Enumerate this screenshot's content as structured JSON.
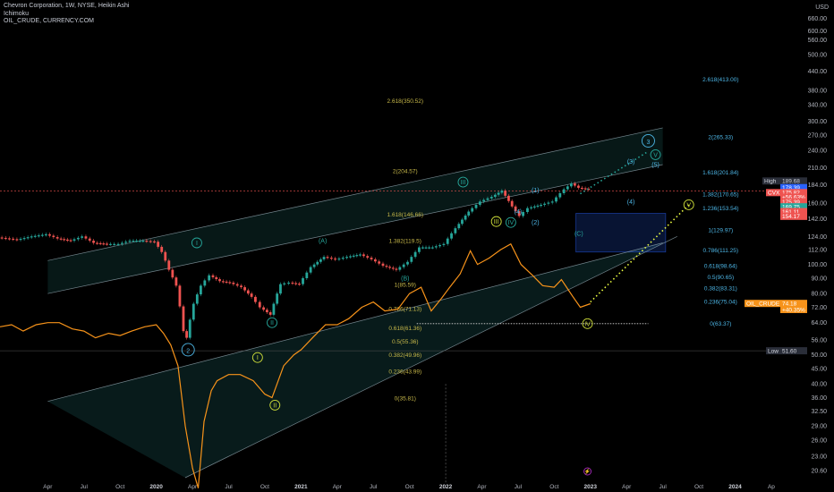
{
  "legend": {
    "title": "Chevron Corporation, 1W, NYSE, Heikin Ashi",
    "indicator": "Ichimoku",
    "overlay": "OIL_CRUDE, CURRENCY.COM"
  },
  "chart_data": {
    "type": "line",
    "currency_label": "USD",
    "y_scale": "log",
    "ylim": [
      19.5,
      690
    ],
    "y_ticks": [
      "660.00",
      "600.00",
      "560.00",
      "500.00",
      "440.00",
      "380.00",
      "340.00",
      "300.00",
      "270.00",
      "240.00",
      "210.00",
      "184.00",
      "160.00",
      "142.00",
      "124.00",
      "112.00",
      "100.00",
      "90.00",
      "80.00",
      "72.00",
      "64.00",
      "56.00",
      "50.00",
      "45.00",
      "40.00",
      "36.00",
      "32.50",
      "29.00",
      "26.00",
      "23.00",
      "20.60"
    ],
    "x_ticks": [
      {
        "label": "Apr",
        "date": 2019.25,
        "year": false
      },
      {
        "label": "Jul",
        "date": 2019.5,
        "year": false
      },
      {
        "label": "Oct",
        "date": 2019.75,
        "year": false
      },
      {
        "label": "2020",
        "date": 2020.0,
        "year": true
      },
      {
        "label": "Apr",
        "date": 2020.25,
        "year": false
      },
      {
        "label": "Jul",
        "date": 2020.5,
        "year": false
      },
      {
        "label": "Oct",
        "date": 2020.75,
        "year": false
      },
      {
        "label": "2021",
        "date": 2021.0,
        "year": true
      },
      {
        "label": "Apr",
        "date": 2021.25,
        "year": false
      },
      {
        "label": "Jul",
        "date": 2021.5,
        "year": false
      },
      {
        "label": "Oct",
        "date": 2021.75,
        "year": false
      },
      {
        "label": "2022",
        "date": 2022.0,
        "year": true
      },
      {
        "label": "Apr",
        "date": 2022.25,
        "year": false
      },
      {
        "label": "Jul",
        "date": 2022.5,
        "year": false
      },
      {
        "label": "Oct",
        "date": 2022.75,
        "year": false
      },
      {
        "label": "2023",
        "date": 2023.0,
        "year": true
      },
      {
        "label": "Apr",
        "date": 2023.25,
        "year": false
      },
      {
        "label": "Jul",
        "date": 2023.5,
        "year": false
      },
      {
        "label": "Oct",
        "date": 2023.75,
        "year": false
      },
      {
        "label": "2024",
        "date": 2024.0,
        "year": true
      },
      {
        "label": "Ap",
        "date": 2024.25,
        "year": false
      }
    ],
    "series": [
      {
        "name": "CVX",
        "color": "#26a69a",
        "down_color": "#ef5350",
        "points": [
          [
            2018.92,
            123
          ],
          [
            2019.05,
            121
          ],
          [
            2019.15,
            124
          ],
          [
            2019.25,
            126
          ],
          [
            2019.33,
            122
          ],
          [
            2019.42,
            120
          ],
          [
            2019.5,
            124
          ],
          [
            2019.58,
            118
          ],
          [
            2019.67,
            117
          ],
          [
            2019.75,
            117
          ],
          [
            2019.83,
            120
          ],
          [
            2019.92,
            120
          ],
          [
            2020.0,
            119
          ],
          [
            2020.05,
            110
          ],
          [
            2020.1,
            96
          ],
          [
            2020.15,
            85
          ],
          [
            2020.2,
            60
          ],
          [
            2020.22,
            57
          ],
          [
            2020.27,
            74
          ],
          [
            2020.32,
            85
          ],
          [
            2020.38,
            92
          ],
          [
            2020.45,
            88
          ],
          [
            2020.52,
            87
          ],
          [
            2020.6,
            84
          ],
          [
            2020.67,
            78
          ],
          [
            2020.73,
            72
          ],
          [
            2020.8,
            68
          ],
          [
            2020.87,
            86
          ],
          [
            2020.93,
            87
          ],
          [
            2021.0,
            86
          ],
          [
            2021.08,
            98
          ],
          [
            2021.17,
            106
          ],
          [
            2021.25,
            104
          ],
          [
            2021.33,
            106
          ],
          [
            2021.42,
            108
          ],
          [
            2021.5,
            104
          ],
          [
            2021.58,
            99
          ],
          [
            2021.67,
            96
          ],
          [
            2021.75,
            102
          ],
          [
            2021.83,
            114
          ],
          [
            2021.92,
            114
          ],
          [
            2022.0,
            117
          ],
          [
            2022.08,
            132
          ],
          [
            2022.17,
            150
          ],
          [
            2022.25,
            162
          ],
          [
            2022.33,
            168
          ],
          [
            2022.4,
            176
          ],
          [
            2022.47,
            156
          ],
          [
            2022.52,
            145
          ],
          [
            2022.58,
            154
          ],
          [
            2022.67,
            158
          ],
          [
            2022.75,
            162
          ],
          [
            2022.83,
            178
          ],
          [
            2022.88,
            186
          ],
          [
            2022.93,
            180
          ],
          [
            2023.0,
            178
          ]
        ]
      },
      {
        "name": "OIL_CRUDE",
        "color": "#f7931a",
        "points": [
          [
            2018.92,
            62
          ],
          [
            2019.0,
            63
          ],
          [
            2019.08,
            60
          ],
          [
            2019.17,
            63
          ],
          [
            2019.25,
            64
          ],
          [
            2019.33,
            64
          ],
          [
            2019.42,
            61
          ],
          [
            2019.5,
            60
          ],
          [
            2019.58,
            57
          ],
          [
            2019.67,
            59
          ],
          [
            2019.75,
            58
          ],
          [
            2019.83,
            60
          ],
          [
            2019.92,
            62
          ],
          [
            2020.0,
            63
          ],
          [
            2020.05,
            59
          ],
          [
            2020.1,
            54
          ],
          [
            2020.15,
            46
          ],
          [
            2020.2,
            29
          ],
          [
            2020.25,
            21
          ],
          [
            2020.29,
            18
          ],
          [
            2020.33,
            30
          ],
          [
            2020.38,
            38
          ],
          [
            2020.42,
            41
          ],
          [
            2020.5,
            43
          ],
          [
            2020.58,
            43
          ],
          [
            2020.67,
            41
          ],
          [
            2020.75,
            37
          ],
          [
            2020.8,
            36
          ],
          [
            2020.88,
            46
          ],
          [
            2020.95,
            50
          ],
          [
            2021.0,
            52
          ],
          [
            2021.08,
            57
          ],
          [
            2021.17,
            63
          ],
          [
            2021.25,
            63
          ],
          [
            2021.33,
            66
          ],
          [
            2021.42,
            72
          ],
          [
            2021.5,
            75
          ],
          [
            2021.58,
            70
          ],
          [
            2021.67,
            71
          ],
          [
            2021.75,
            80
          ],
          [
            2021.83,
            84
          ],
          [
            2021.9,
            70
          ],
          [
            2021.97,
            77
          ],
          [
            2022.02,
            83
          ],
          [
            2022.1,
            93
          ],
          [
            2022.17,
            111
          ],
          [
            2022.22,
            100
          ],
          [
            2022.3,
            105
          ],
          [
            2022.38,
            112
          ],
          [
            2022.45,
            117
          ],
          [
            2022.52,
            100
          ],
          [
            2022.6,
            92
          ],
          [
            2022.67,
            85
          ],
          [
            2022.75,
            84
          ],
          [
            2022.8,
            89
          ],
          [
            2022.88,
            78
          ],
          [
            2022.93,
            72
          ],
          [
            2023.0,
            74
          ]
        ]
      }
    ],
    "channel_upper": [
      [
        2019.25,
        103
      ],
      [
        2023.5,
        285
      ]
    ],
    "channel_upper_inner": [
      [
        2019.25,
        80
      ],
      [
        2023.5,
        215
      ]
    ],
    "channel_lower": [
      [
        2019.25,
        35
      ],
      [
        2023.5,
        118
      ]
    ],
    "channel_lower_inner": [
      [
        2020.2,
        19.5
      ],
      [
        2023.6,
        124
      ]
    ],
    "fib_levels_oil": [
      {
        "label": "2.618(350.52)",
        "y": 350.52,
        "color": "#c8b94a"
      },
      {
        "label": "2(204.57)",
        "y": 204.57,
        "color": "#c8b94a"
      },
      {
        "label": "1.618(146.66)",
        "y": 146.66,
        "color": "#c8b94a"
      },
      {
        "label": "1.382(119.5)",
        "y": 119.5,
        "color": "#c8b94a"
      },
      {
        "label": "1(85.59)",
        "y": 85.59,
        "color": "#c8b94a"
      },
      {
        "label": "0.786(71.13)",
        "y": 71.13,
        "color": "#c8b94a"
      },
      {
        "label": "0.618(61.36)",
        "y": 61.36,
        "color": "#c8b94a"
      },
      {
        "label": "0.5(55.36)",
        "y": 55.36,
        "color": "#c8b94a"
      },
      {
        "label": "0.382(49.96)",
        "y": 49.96,
        "color": "#c8b94a"
      },
      {
        "label": "0.236(43.99)",
        "y": 43.99,
        "color": "#c8b94a"
      },
      {
        "label": "0(35.81)",
        "y": 35.81,
        "color": "#c8b94a"
      }
    ],
    "fib_levels_cvx": [
      {
        "label": "2.618(413.00)",
        "y": 413.0,
        "color": "#4db6e6"
      },
      {
        "label": "2(265.33)",
        "y": 265.33,
        "color": "#4db6e6"
      },
      {
        "label": "1.618(201.84)",
        "y": 201.84,
        "color": "#4db6e6"
      },
      {
        "label": "1.382(170.65)",
        "y": 170.65,
        "color": "#4db6e6"
      },
      {
        "label": "1.236(153.54)",
        "y": 153.54,
        "color": "#4db6e6"
      },
      {
        "label": "1(129.97)",
        "y": 129.97,
        "color": "#4db6e6"
      },
      {
        "label": "0.786(111.25)",
        "y": 111.25,
        "color": "#4db6e6"
      },
      {
        "label": "0.618(98.64)",
        "y": 98.64,
        "color": "#4db6e6"
      },
      {
        "label": "0.5(90.65)",
        "y": 90.65,
        "color": "#4db6e6"
      },
      {
        "label": "0.382(83.31)",
        "y": 83.31,
        "color": "#4db6e6"
      },
      {
        "label": "0.236(75.04)",
        "y": 75.04,
        "color": "#4db6e6"
      },
      {
        "label": "0(63.37)",
        "y": 63.37,
        "color": "#4db6e6"
      }
    ],
    "waves": [
      {
        "label": "2",
        "x": 2020.22,
        "y": 52,
        "color": "#4db6e6",
        "big": true
      },
      {
        "label": "3",
        "x": 2023.4,
        "y": 258,
        "color": "#4db6e6",
        "big": true
      },
      {
        "label": "I",
        "x": 2020.28,
        "y": 118,
        "color": "#26a69a"
      },
      {
        "label": "II",
        "x": 2020.8,
        "y": 64,
        "color": "#26a69a"
      },
      {
        "label": "III",
        "x": 2022.12,
        "y": 188,
        "color": "#26a69a"
      },
      {
        "label": "IV",
        "x": 2022.45,
        "y": 138,
        "color": "#26a69a"
      },
      {
        "label": "V",
        "x": 2023.45,
        "y": 232,
        "color": "#26a69a"
      },
      {
        "label": "I",
        "x": 2020.7,
        "y": 49,
        "color": "#cddc39"
      },
      {
        "label": "II",
        "x": 2020.82,
        "y": 34,
        "color": "#cddc39"
      },
      {
        "label": "III",
        "x": 2022.35,
        "y": 139,
        "color": "#cddc39"
      },
      {
        "label": "IV",
        "x": 2022.98,
        "y": 63.5,
        "color": "#cddc39"
      },
      {
        "label": "V",
        "x": 2023.68,
        "y": 158,
        "color": "#cddc39"
      },
      {
        "label": "(A)",
        "x": 2021.15,
        "y": 120,
        "color": "#26a69a"
      },
      {
        "label": "(B)",
        "x": 2021.72,
        "y": 90,
        "color": "#26a69a"
      },
      {
        "label": "(C)",
        "x": 2022.92,
        "y": 127,
        "color": "#26a69a"
      },
      {
        "label": "(3)",
        "x": 2023.28,
        "y": 220,
        "color": "#4db6e6"
      },
      {
        "label": "(4)",
        "x": 2023.28,
        "y": 162,
        "color": "#4db6e6"
      },
      {
        "label": "(5)",
        "x": 2023.45,
        "y": 215,
        "color": "#4db6e6"
      },
      {
        "label": "(1)",
        "x": 2022.62,
        "y": 177,
        "color": "#4db6e6"
      },
      {
        "label": "(2)",
        "x": 2022.62,
        "y": 138,
        "color": "#4db6e6"
      },
      {
        "label": "(4)",
        "x": 2022.5,
        "y": 150,
        "color": "#4db6e6"
      }
    ],
    "projection_cvx": [
      [
        2022.93,
        172
      ],
      [
        2023.4,
        238
      ]
    ],
    "projection_oil": [
      [
        2023.0,
        75
      ],
      [
        2023.68,
        158
      ]
    ],
    "box": {
      "from": [
        2022.9,
        148
      ],
      "to": [
        2023.52,
        110
      ]
    },
    "price_tags": [
      {
        "text": "High",
        "value": "189.68",
        "y": 189.68,
        "bg": "#2a2e39",
        "fg": "#d1d4dc"
      },
      {
        "text": "",
        "value": "178.39",
        "y": 180.2,
        "bg": "#2962ff",
        "fg": "#fff"
      },
      {
        "text": "CVX",
        "value": "175.82",
        "y": 173.5,
        "bg": "#ef5350",
        "fg": "#fff"
      },
      {
        "text": "",
        "value": "+56.63%",
        "y": 167.5,
        "bg": "#ef5350",
        "fg": "#fff"
      },
      {
        "text": "",
        "value": "175.39",
        "y": 161.5,
        "bg": "#ef5350",
        "fg": "#fff"
      },
      {
        "text": "",
        "value": "169.75",
        "y": 155.6,
        "bg": "#26a69a",
        "fg": "#fff"
      },
      {
        "text": "",
        "value": "161.11",
        "y": 150,
        "bg": "#ef5350",
        "fg": "#fff"
      },
      {
        "text": "",
        "value": "154.17",
        "y": 144.6,
        "bg": "#ef5350",
        "fg": "#fff"
      },
      {
        "text": "OIL_CRUDE",
        "value": "74.18",
        "y": 74.18,
        "bg": "#f7931a",
        "fg": "#fff"
      },
      {
        "text": "",
        "value": "+40.35%",
        "y": 70.8,
        "bg": "#f7931a",
        "fg": "#fff"
      },
      {
        "text": "Low",
        "value": "51.60",
        "y": 51.6,
        "bg": "#2a2e39",
        "fg": "#d1d4dc"
      }
    ]
  }
}
